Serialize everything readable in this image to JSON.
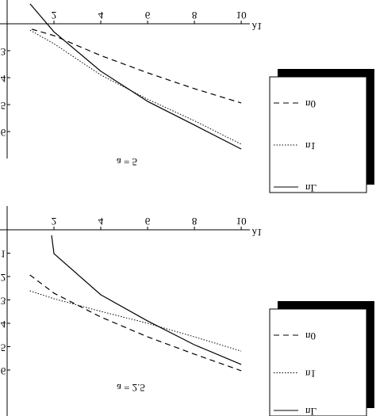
{
  "chart_data": [
    {
      "type": "line",
      "annotation": "a = 5",
      "xlabel": "λ1",
      "xlim": [
        0,
        10.2
      ],
      "xticks": [
        2,
        4,
        6,
        8,
        10
      ],
      "ylim": [
        2,
        7
      ],
      "yticks": [
        3,
        4,
        5,
        6
      ],
      "legend": "right",
      "series": [
        {
          "name": "n0",
          "style": "dashed",
          "color": "#000",
          "x": [
            1.05,
            2,
            4,
            6,
            8,
            10
          ],
          "values": [
            2.2,
            2.44,
            3.18,
            3.82,
            4.41,
            4.94
          ]
        },
        {
          "name": "n1",
          "style": "dotted",
          "color": "#000",
          "x": [
            0.98,
            2,
            4,
            6,
            8,
            10
          ],
          "values": [
            2.24,
            2.74,
            3.9,
            4.8,
            5.6,
            6.47
          ]
        },
        {
          "name": "nL",
          "style": "solid",
          "color": "#000",
          "x": [
            0.98,
            2,
            4,
            6,
            8,
            10
          ],
          "values": [
            1.26,
            2.3,
            3.76,
            4.88,
            5.76,
            6.65
          ]
        }
      ]
    },
    {
      "type": "line",
      "annotation": "a = 2.5",
      "xlabel": "λ1",
      "xlim": [
        0,
        10.2
      ],
      "xticks": [
        2,
        4,
        6,
        8,
        10
      ],
      "ylim": [
        0,
        8
      ],
      "yticks": [
        1,
        2,
        3,
        4,
        5,
        6
      ],
      "legend": "right",
      "series": [
        {
          "name": "n0",
          "style": "dashed",
          "color": "#000",
          "x": [
            0.97,
            2,
            4,
            6,
            8,
            10
          ],
          "values": [
            1.93,
            2.71,
            3.73,
            4.58,
            5.32,
            6.03
          ]
        },
        {
          "name": "n1",
          "style": "dotted",
          "color": "#000",
          "x": [
            0.97,
            2,
            4,
            6,
            8,
            10
          ],
          "values": [
            2.61,
            2.95,
            3.49,
            4.0,
            4.58,
            5.19
          ]
        },
        {
          "name": "nL",
          "style": "solid",
          "color": "#000",
          "x": [
            1.9,
            2,
            4,
            6,
            8,
            10
          ],
          "values": [
            0.24,
            1.02,
            2.78,
            3.9,
            4.92,
            5.76
          ]
        }
      ]
    }
  ]
}
